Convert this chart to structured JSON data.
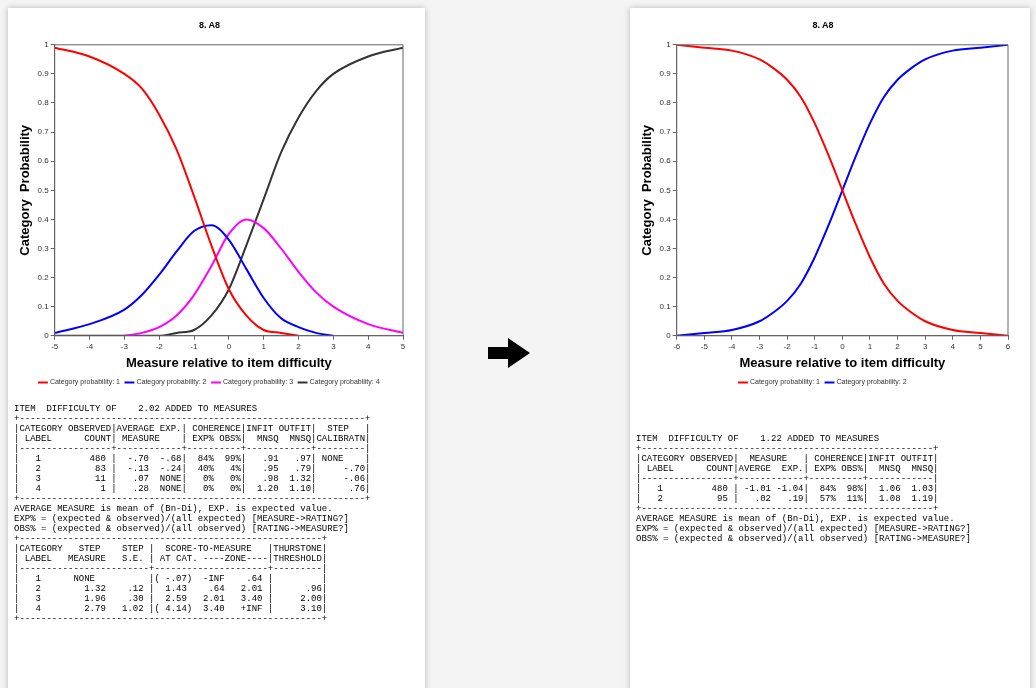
{
  "chart_data": [
    {
      "type": "line",
      "title": "8. A8",
      "xlabel": "Measure relative to item difficulty",
      "ylabel": "Category  Probability",
      "x": [
        -5,
        -4,
        -3,
        -2.5,
        -2,
        -1.5,
        -1,
        -0.5,
        0,
        0.5,
        1,
        1.5,
        2,
        2.5,
        3,
        4,
        5
      ],
      "series": [
        {
          "name": "Category probability: 1",
          "color": "#ff0000",
          "values": [
            0.99,
            0.96,
            0.9,
            0.85,
            0.76,
            0.64,
            0.48,
            0.31,
            0.16,
            0.07,
            0.02,
            0.01,
            0,
            null,
            null,
            null,
            null
          ]
        },
        {
          "name": "Category probability: 2",
          "color": "#0000ff",
          "values": [
            0.01,
            0.04,
            0.09,
            0.14,
            0.21,
            0.29,
            0.36,
            0.38,
            0.33,
            0.23,
            0.13,
            0.06,
            0.03,
            0.01,
            0,
            null,
            null
          ]
        },
        {
          "name": "Category probability: 3",
          "color": "#ff00ff",
          "values": [
            null,
            null,
            0,
            0.01,
            0.03,
            0.07,
            0.14,
            0.24,
            0.35,
            0.4,
            0.37,
            0.3,
            0.22,
            0.15,
            0.1,
            0.04,
            0.01
          ]
        },
        {
          "name": "Category probability: 4",
          "color": "#333333",
          "values": [
            0,
            0,
            0,
            0,
            0,
            0.01,
            0.02,
            0.07,
            0.16,
            0.31,
            0.47,
            0.63,
            0.75,
            0.84,
            0.9,
            0.96,
            0.99
          ]
        }
      ],
      "xlim": [
        -5,
        5
      ],
      "xticks": [
        -5,
        -4,
        -3,
        -2,
        -1,
        0,
        1,
        2,
        3,
        4,
        5
      ],
      "ylim": [
        0,
        1
      ],
      "yticks": [
        0,
        0.1,
        0.2,
        0.3,
        0.4,
        0.5,
        0.6,
        0.7,
        0.8,
        0.9,
        1
      ],
      "legend": "bottom",
      "marker": "none",
      "annotations": [
        "ITEM  DIFFICULTY OF    2.02 ADDED TO MEASURES",
        "+----------------------------------------------------------------+",
        "|CATEGORY OBSERVED|AVERAGE EXP.| COHERENCE|INFIT OUTFIT|  STEP   |",
        "| LABEL      COUNT| MEASURE    | EXP% OBS%|  MNSQ  MNSQ|CALIBRATN|",
        "|-----------------+------------+----------+------------+---------|",
        "|   1         480 |  -.70  -.68|  84%  99%|   .91   .97| NONE    |",
        "|   2          83 |  -.13  -.24|  40%   4%|   .95   .79|     -.70|",
        "|   3          11 |   .07  NONE|   0%   0%|   .98  1.32|     -.06|",
        "|   4           1 |   .28  NONE|   0%   0%|  1.20  1.10|      .76|",
        "+----------------------------------------------------------------+",
        "AVERAGE MEASURE is mean of (Bn-Di), EXP. is expected value.",
        "EXP% = (expected & observed)/(all expected) [MEASURE->RATING?]",
        "OBS% = (expected & observed)/(all observed) [RATING->MEASURE?]",
        "+--------------------------------------------------------+",
        "|CATEGORY   STEP    STEP |  SCORE-TO-MEASURE   |THURSTONE|",
        "| LABEL   MEASURE   S.E. | AT CAT. ----ZONE----|THRESHOLD|",
        "|------------------------+---------------------+---------|",
        "|   1      NONE          |( -.07)  -INF    .64 |         |",
        "|   2        1.32    .12 |  1.43    .64   2.01 |      .96|",
        "|   3        1.96    .30 |  2.59   2.01   3.40 |     2.00|",
        "|   4        2.79   1.02 |( 4.14)  3.40   +INF |     3.10|",
        "+--------------------------------------------------------+"
      ]
    },
    {
      "type": "line",
      "title": "8. A8",
      "xlabel": "Measure relative to item difficulty",
      "ylabel": "Category  Probability",
      "x": [
        -6,
        -5,
        -4,
        -3,
        -2.5,
        -2,
        -1.5,
        -1,
        -0.5,
        0,
        0.5,
        1,
        1.5,
        2,
        2.5,
        3,
        4,
        5,
        6
      ],
      "series": [
        {
          "name": "Category probability: 1",
          "color": "#ff0000",
          "values": [
            1,
            0.99,
            0.98,
            0.95,
            0.92,
            0.88,
            0.82,
            0.73,
            0.62,
            0.5,
            0.38,
            0.27,
            0.18,
            0.12,
            0.08,
            0.05,
            0.02,
            0.01,
            0
          ]
        },
        {
          "name": "Category probability: 2",
          "color": "#0000ff",
          "values": [
            0,
            0.01,
            0.02,
            0.05,
            0.08,
            0.12,
            0.18,
            0.27,
            0.38,
            0.5,
            0.62,
            0.73,
            0.82,
            0.88,
            0.92,
            0.95,
            0.98,
            0.99,
            1
          ]
        }
      ],
      "xlim": [
        -6,
        6
      ],
      "xticks": [
        -6,
        -5,
        -4,
        -3,
        -2,
        -1,
        0,
        1,
        2,
        3,
        4,
        5,
        6
      ],
      "ylim": [
        0,
        1
      ],
      "yticks": [
        0,
        0.1,
        0.2,
        0.3,
        0.4,
        0.5,
        0.6,
        0.7,
        0.8,
        0.9,
        1
      ],
      "legend": "bottom",
      "marker": "none",
      "annotations": [
        "ITEM  DIFFICULTY OF    1.22 ADDED TO MEASURES",
        "+------------------------------------------------------+",
        "|CATEGORY OBSERVED|  MEASURE   | COHERENCE|INFIT OUTFIT|",
        "| LABEL      COUNT|AVERGE  EXP.| EXP% OBS%|  MNSQ  MNSQ|",
        "|-----------------+------------+----------+------------|",
        "|   1         480 | -1.01 -1.04|  84%  98%|  1.06  1.03|",
        "|   2          95 |   .02   .19|  57%  11%|  1.08  1.19|",
        "+------------------------------------------------------+",
        "AVERAGE MEASURE is mean of (Bn-Di), EXP. is expected value.",
        "EXP% = (expected & observed)/(all expected) [MEASURE->RATING?]",
        "OBS% = (expected & observed)/(all observed) [RATING->MEASURE?]"
      ]
    }
  ]
}
